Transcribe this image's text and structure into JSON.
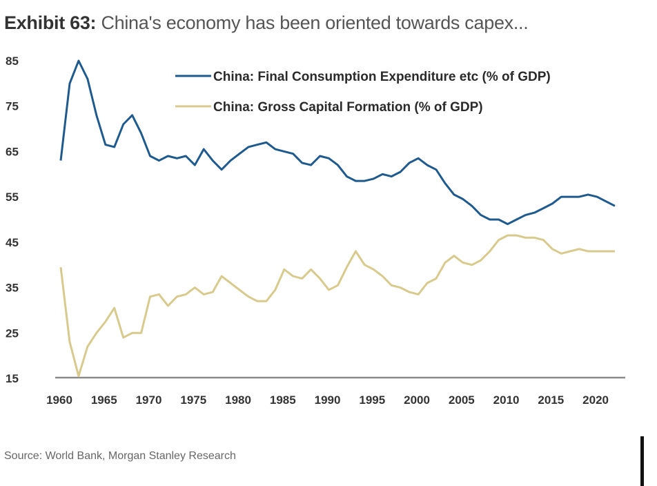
{
  "header": {
    "exhibit": "Exhibit 63:",
    "title": "China's economy has been oriented towards capex..."
  },
  "source": "Source: World Bank, Morgan Stanley Research",
  "chart_data": {
    "type": "line",
    "title": "China's economy has been oriented towards capex...",
    "xlabel": "",
    "ylabel": "",
    "xlim": [
      1960,
      2022
    ],
    "ylim": [
      15,
      85
    ],
    "x_ticks": [
      1960,
      1965,
      1970,
      1975,
      1980,
      1985,
      1990,
      1995,
      2000,
      2005,
      2010,
      2015,
      2020
    ],
    "y_ticks": [
      15,
      25,
      35,
      45,
      55,
      65,
      75,
      85
    ],
    "grid": false,
    "legend_position": "top-right",
    "x": [
      1960,
      1961,
      1962,
      1963,
      1964,
      1965,
      1966,
      1967,
      1968,
      1969,
      1970,
      1971,
      1972,
      1973,
      1974,
      1975,
      1976,
      1977,
      1978,
      1979,
      1980,
      1981,
      1982,
      1983,
      1984,
      1985,
      1986,
      1987,
      1988,
      1989,
      1990,
      1991,
      1992,
      1993,
      1994,
      1995,
      1996,
      1997,
      1998,
      1999,
      2000,
      2001,
      2002,
      2003,
      2004,
      2005,
      2006,
      2007,
      2008,
      2009,
      2010,
      2011,
      2012,
      2013,
      2014,
      2015,
      2016,
      2017,
      2018,
      2019,
      2020,
      2021,
      2022
    ],
    "series": [
      {
        "name": "China: Final Consumption Expenditure etc (% of GDP)",
        "color": "#1f5a8f",
        "values": [
          63,
          80,
          85,
          81,
          73,
          66.5,
          66,
          71,
          73,
          69,
          64,
          63,
          64,
          63.5,
          64,
          62,
          65.5,
          63,
          61,
          63,
          64.5,
          66,
          66.5,
          67,
          65.5,
          65,
          64.5,
          62.5,
          62,
          64,
          63.5,
          62,
          59.5,
          58.5,
          58.5,
          59,
          60,
          59.5,
          60.5,
          62.5,
          63.5,
          62,
          61,
          58,
          55.5,
          54.5,
          53,
          51,
          50,
          50,
          49,
          50,
          51,
          51.5,
          52.5,
          53.5,
          55,
          55,
          55,
          55.5,
          55,
          54,
          53
        ]
      },
      {
        "name": "China: Gross Capital Formation (% of GDP)",
        "color": "#d8c98c",
        "values": [
          39.5,
          23,
          15.5,
          22,
          25,
          27.5,
          30.5,
          24,
          25,
          25,
          33,
          33.5,
          31,
          33,
          33.5,
          35,
          33.5,
          34,
          37.5,
          36,
          34.5,
          33,
          32,
          32,
          34.5,
          39,
          37.5,
          37,
          39,
          37,
          34.5,
          35.5,
          39.5,
          43,
          40,
          39,
          37.5,
          35.5,
          35,
          34,
          33.5,
          36,
          37,
          40.5,
          42,
          40.5,
          40,
          41,
          43,
          45.5,
          46.5,
          46.5,
          46,
          46,
          45.5,
          43.5,
          42.5,
          43,
          43.5,
          43,
          43,
          43,
          43
        ]
      }
    ]
  }
}
